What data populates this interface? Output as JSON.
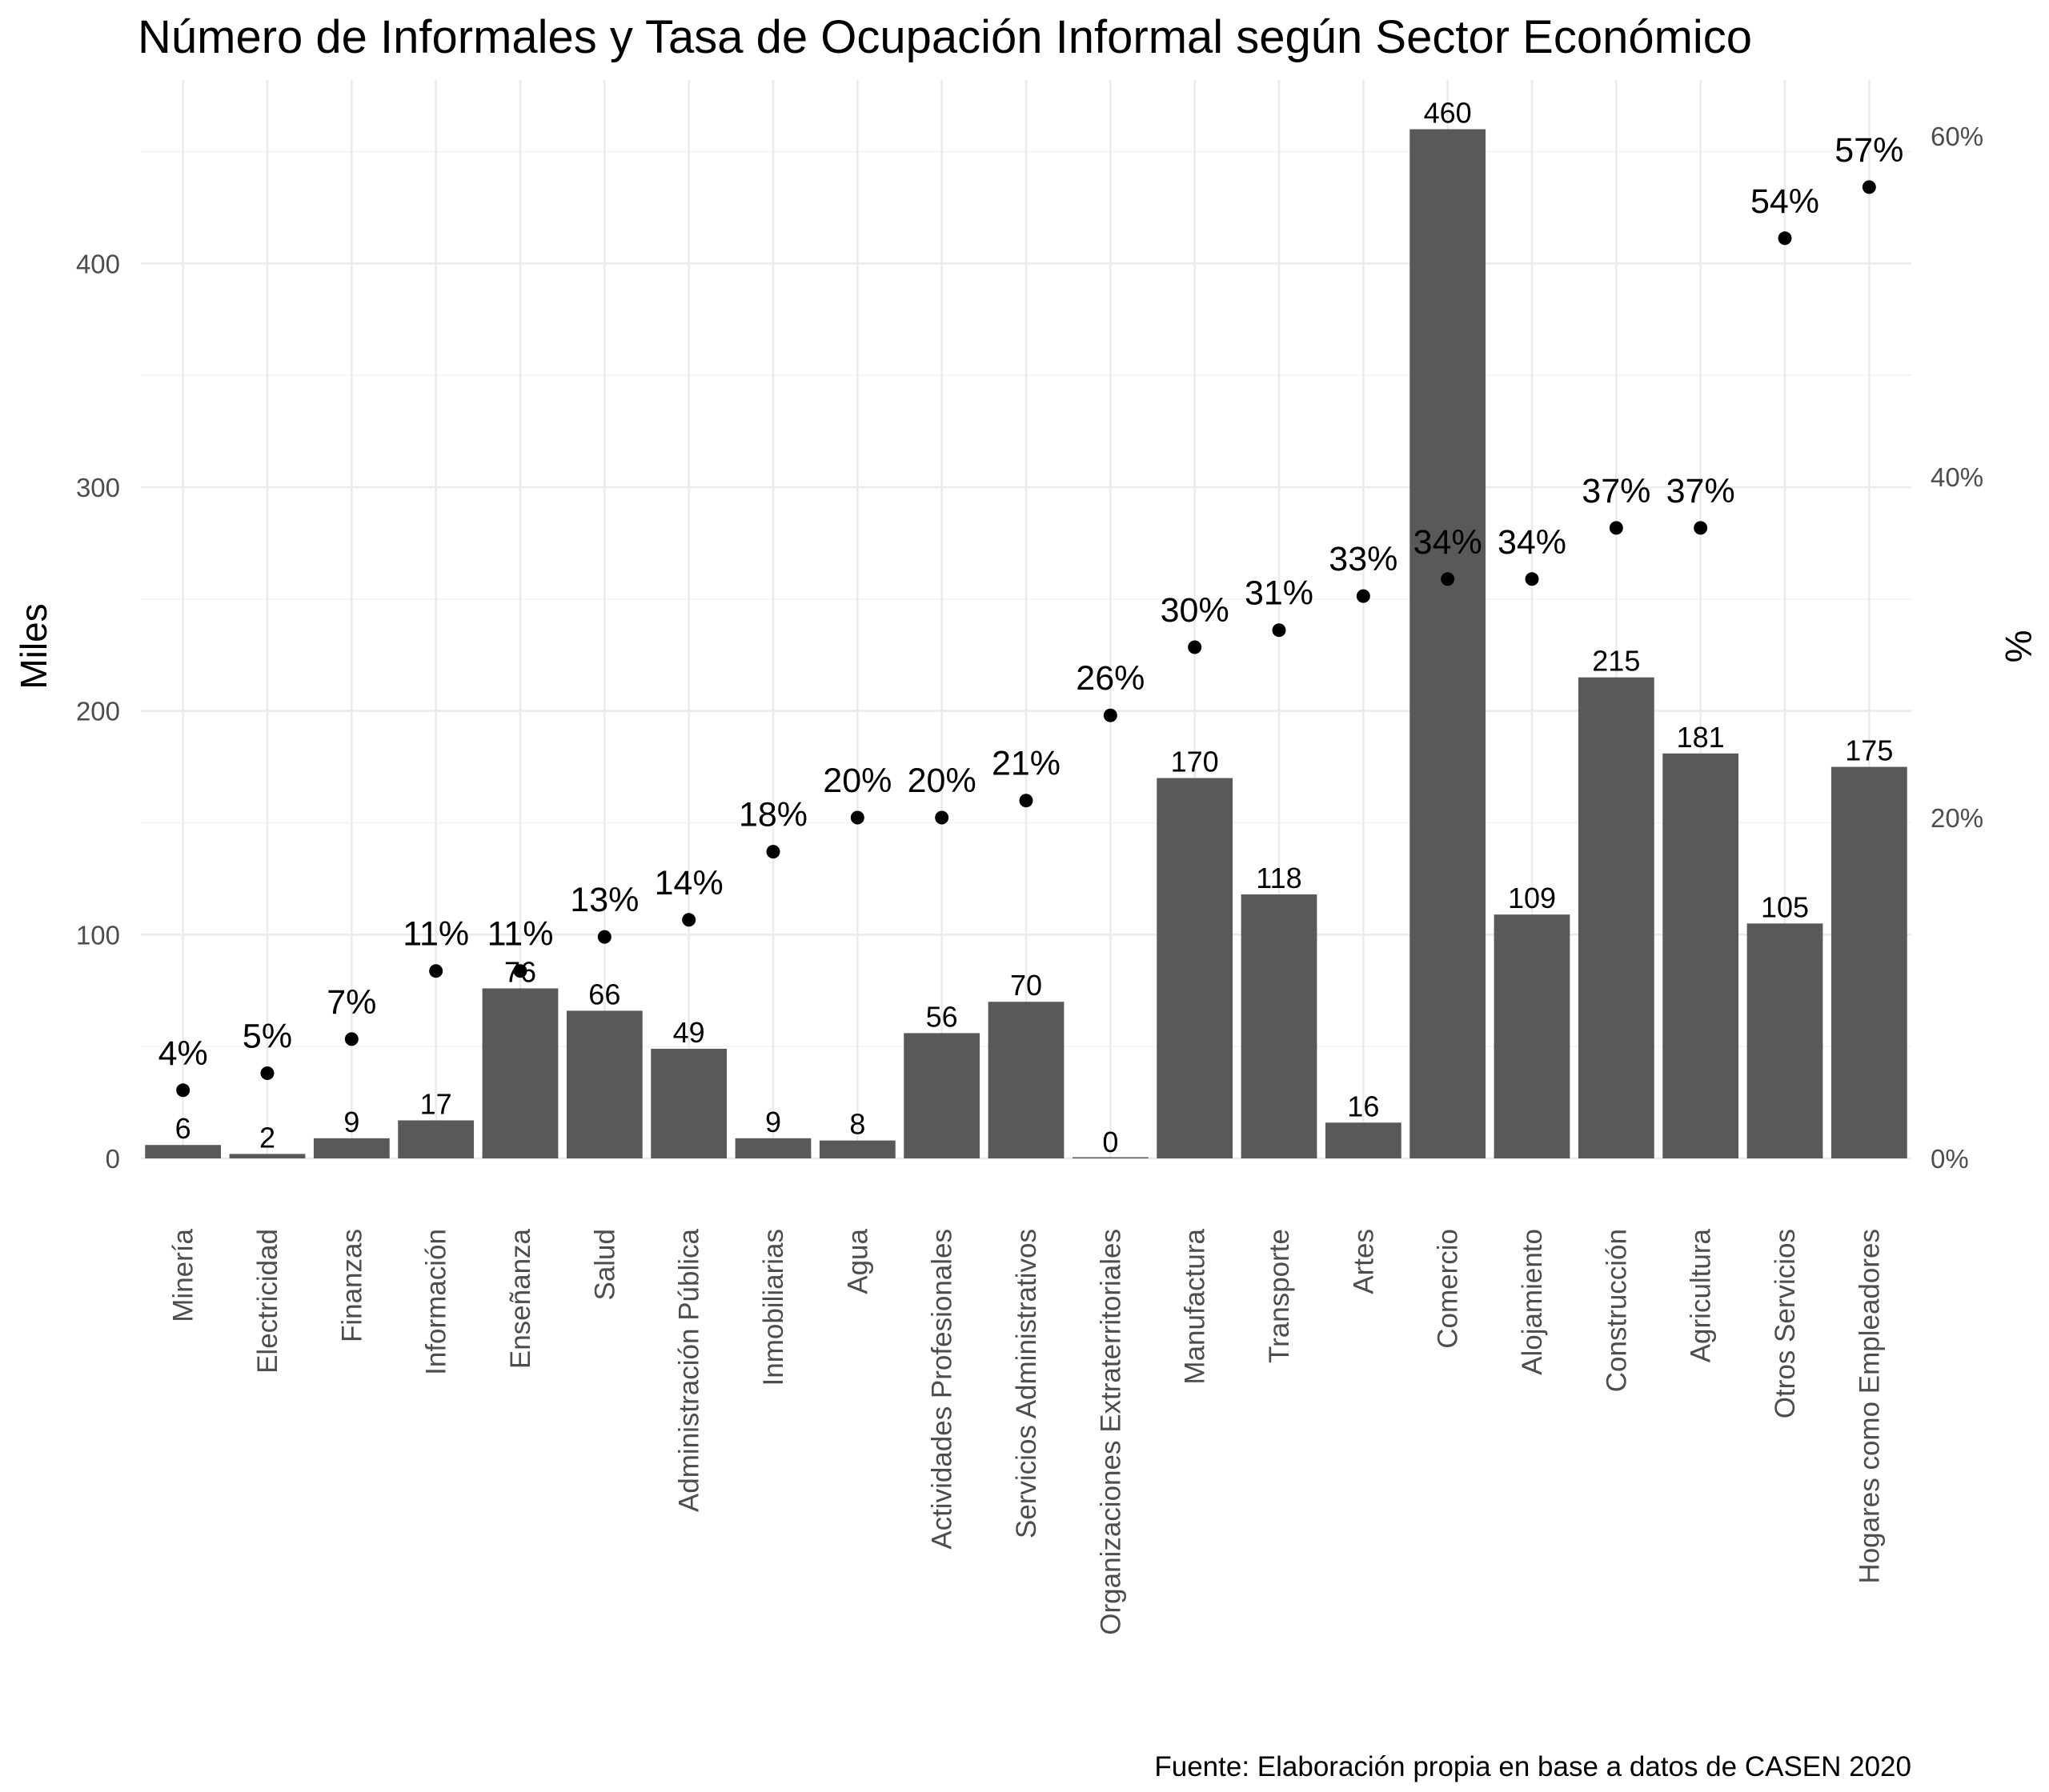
{
  "chart_data": {
    "type": "bar",
    "title": "Número de Informales y Tasa de Ocupación Informal según Sector Económico",
    "ylabel": "Miles",
    "y2label": "%",
    "caption": "Fuente: Elaboración propia en base a datos de CASEN 2020",
    "ylim": [
      0,
      460
    ],
    "yticks": [
      "0",
      "100",
      "200",
      "300",
      "400"
    ],
    "y2lim": [
      0,
      0.6
    ],
    "y2ticks": [
      "0%",
      "20%",
      "40%",
      "60%"
    ],
    "grid": true,
    "legend": "none",
    "colors": {
      "bar": "#595959",
      "point": "#000000",
      "grid": "#ebebeb"
    },
    "categories": [
      "Minería",
      "Electricidad",
      "Finanzas",
      "Información",
      "Enseñanza",
      "Salud",
      "Administración Pública",
      "Inmobiliarias",
      "Agua",
      "Actividades Profesionales",
      "Servicios Administrativos",
      "Organizaciones Extraterritoriales",
      "Manufactura",
      "Transporte",
      "Artes",
      "Comercio",
      "Alojamiento",
      "Construcción",
      "Agricultura",
      "Otros Servicios",
      "Hogares como Empleadores"
    ],
    "series": [
      {
        "type": "bar",
        "values": [
          6,
          2,
          9,
          17,
          76,
          66,
          49,
          9,
          8,
          56,
          70,
          0,
          170,
          118,
          16,
          460,
          109,
          215,
          181,
          105,
          175
        ],
        "labels": [
          "6",
          "2",
          "9",
          "17",
          "76",
          "66",
          "49",
          "9",
          "8",
          "56",
          "70",
          "0",
          "170",
          "118",
          "16",
          "460",
          "109",
          "215",
          "181",
          "105",
          "175"
        ]
      },
      {
        "type": "point",
        "axis": "right",
        "values": [
          0.04,
          0.05,
          0.07,
          0.11,
          0.11,
          0.13,
          0.14,
          0.18,
          0.2,
          0.2,
          0.21,
          0.26,
          0.3,
          0.31,
          0.33,
          0.34,
          0.34,
          0.37,
          0.37,
          0.54,
          0.57
        ],
        "labels": [
          "4%",
          "5%",
          "7%",
          "11%",
          "11%",
          "13%",
          "14%",
          "18%",
          "20%",
          "20%",
          "21%",
          "26%",
          "30%",
          "31%",
          "33%",
          "34%",
          "34%",
          "37%",
          "37%",
          "54%",
          "57%"
        ]
      }
    ]
  }
}
